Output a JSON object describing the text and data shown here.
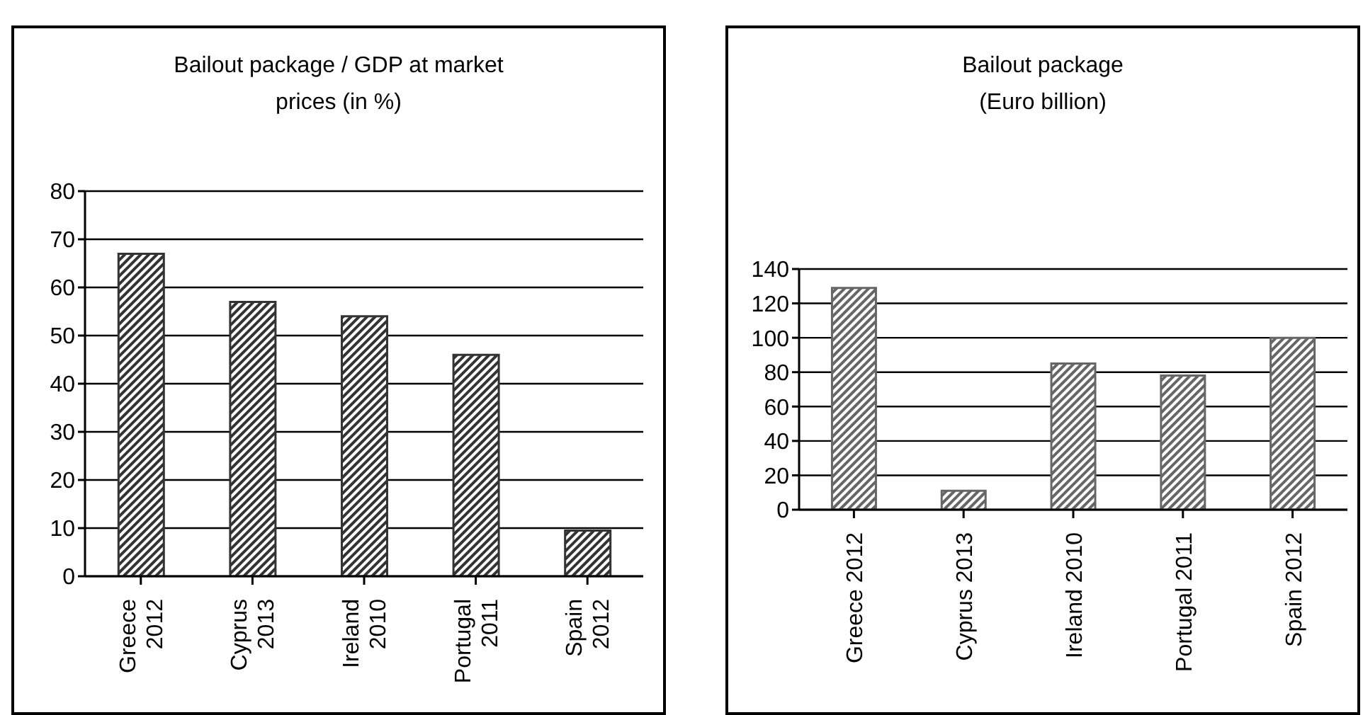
{
  "chart_data": [
    {
      "type": "bar",
      "title": "Bailout package / GDP at market\nprices (in %)",
      "categories": [
        "Greece\n2012",
        "Cyprus\n2013",
        "Ireland\n2010",
        "Portugal\n2011",
        "Spain\n2012"
      ],
      "values": [
        67,
        57,
        54,
        46,
        9.5
      ],
      "color": "#333333",
      "ylim": [
        0,
        80
      ],
      "yticks": [
        0,
        10,
        20,
        30,
        40,
        50,
        60,
        70,
        80
      ],
      "grid": "y"
    },
    {
      "type": "bar",
      "title": "Bailout package\n(Euro billion)",
      "categories": [
        "Greece 2012",
        "Cyprus 2013",
        "Ireland 2010",
        "Portugal 2011",
        "Spain 2012"
      ],
      "values": [
        129,
        11,
        85,
        78,
        100
      ],
      "color": "#666666",
      "ylim": [
        0,
        140
      ],
      "yticks": [
        0,
        20,
        40,
        60,
        80,
        100,
        120,
        140
      ],
      "grid": "y"
    }
  ]
}
